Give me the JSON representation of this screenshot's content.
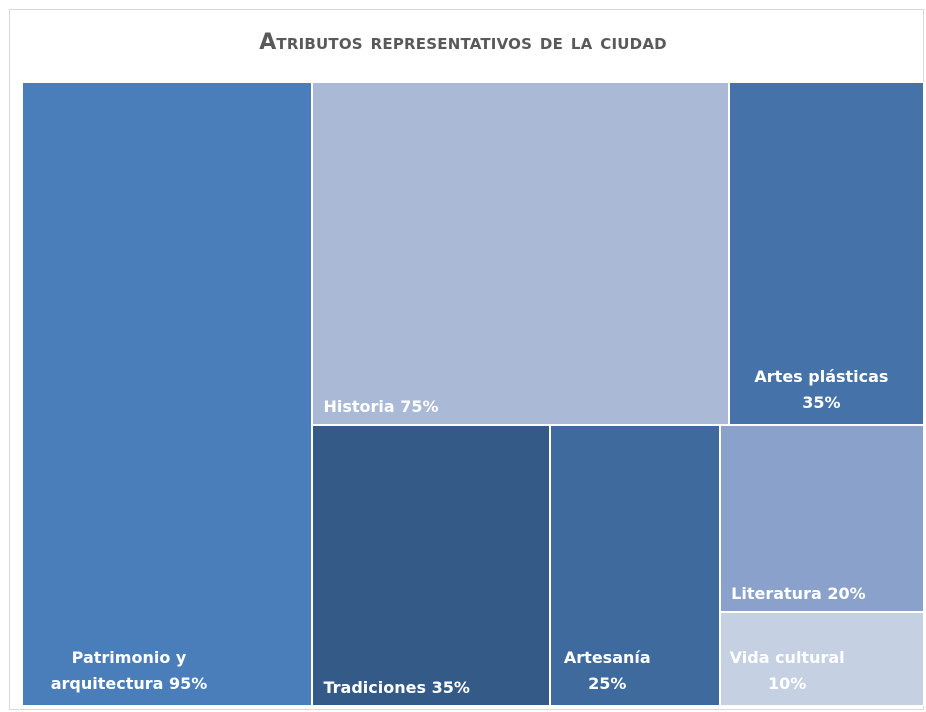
{
  "chart_data": {
    "type": "treemap",
    "title": "Atributos representativos de la ciudad",
    "categories": [
      "Patrimonio y arquitectura",
      "Historia",
      "Artes plásticas",
      "Tradiciones",
      "Artesanía",
      "Literatura",
      "Vida cultural"
    ],
    "values": [
      95,
      75,
      35,
      35,
      25,
      20,
      10
    ],
    "value_labels": [
      "95%",
      "75%",
      "35%",
      "35%",
      "25%",
      "20%",
      "10%"
    ],
    "colors": [
      "#4a7ebb",
      "#a9b9d6",
      "#4672aa",
      "#345a88",
      "#3f6a9d",
      "#8aa2cb",
      "#c5d0e3"
    ]
  }
}
